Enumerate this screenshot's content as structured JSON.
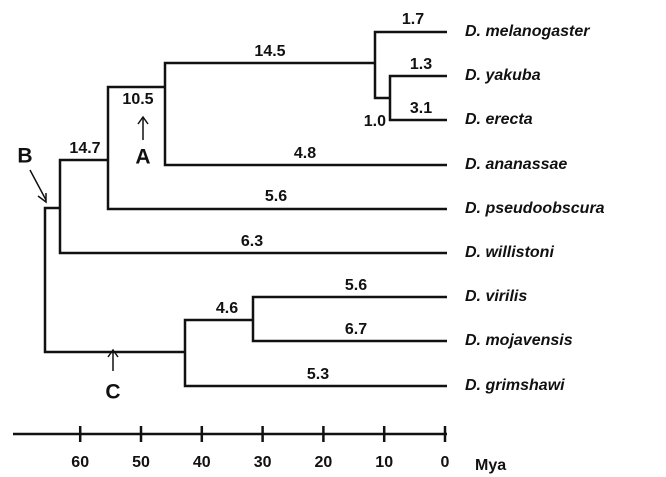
{
  "tree": {
    "leaves": [
      "D. melanogaster",
      "D. yakuba",
      "D. erecta",
      "D. ananassae",
      "D. pseudoobscura",
      "D. willistoni",
      "D. virilis",
      "D. mojavensis",
      "D. grimshawi"
    ],
    "branch_labels": [
      "1.7",
      "1.3",
      "3.1",
      "1.0",
      "14.5",
      "10.5",
      "4.8",
      "5.6",
      "14.7",
      "6.3",
      "4.6",
      "5.6",
      "6.7",
      "5.3"
    ],
    "node_labels": [
      "A",
      "B",
      "C"
    ]
  },
  "axis": {
    "ticks": [
      60,
      50,
      40,
      30,
      20,
      10,
      0
    ],
    "unit": "Mya"
  }
}
